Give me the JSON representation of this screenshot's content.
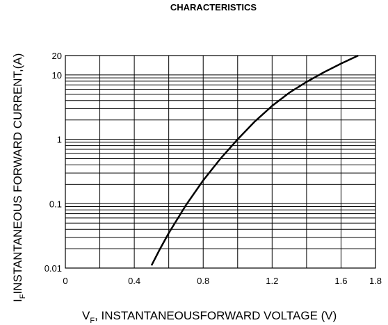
{
  "chart_data": {
    "type": "line",
    "title": "CHARACTERISTICS",
    "xlabel": {
      "symbol": "V",
      "subscript": "F",
      "text": ", INSTANTANEOUSFORWARD VOLTAGE (V)"
    },
    "ylabel": {
      "symbol": "I",
      "subscript": "F",
      "text": "INSTANTANEOUS FORWARD CURRENT,(A)"
    },
    "xlim": [
      0,
      1.8
    ],
    "ylim": [
      0.01,
      20
    ],
    "yscale": "log",
    "grid": true,
    "x_ticks": [
      {
        "value": 0,
        "label": "0"
      },
      {
        "value": 0.4,
        "label": "0.4"
      },
      {
        "value": 0.8,
        "label": "0.8"
      },
      {
        "value": 1.2,
        "label": "1.2"
      },
      {
        "value": 1.6,
        "label": "1.6"
      },
      {
        "value": 1.8,
        "label": "1.8"
      }
    ],
    "y_ticks": [
      {
        "value": 0.01,
        "label": "0.01"
      },
      {
        "value": 0.1,
        "label": "0.1"
      },
      {
        "value": 1,
        "label": "1"
      },
      {
        "value": 10,
        "label": "10"
      },
      {
        "value": 20,
        "label": "20"
      }
    ],
    "series": [
      {
        "x": [
          0.5,
          0.55,
          0.6,
          0.7,
          0.8,
          0.9,
          1.0,
          1.1,
          1.2,
          1.3,
          1.4,
          1.5,
          1.6,
          1.7
        ],
        "y": [
          0.011,
          0.02,
          0.035,
          0.095,
          0.23,
          0.5,
          1.0,
          1.9,
          3.3,
          5.3,
          7.8,
          11,
          15,
          20
        ]
      }
    ]
  }
}
